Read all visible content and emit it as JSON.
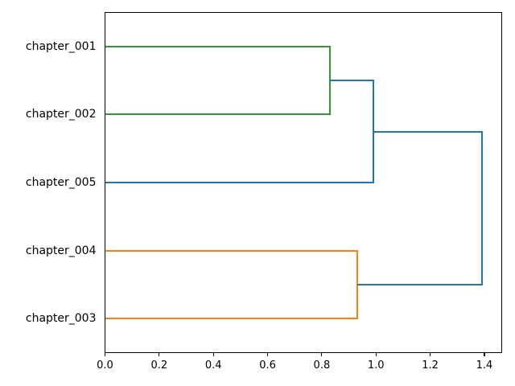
{
  "figure": {
    "background": "#ffffff",
    "plot_border_color": "#000000"
  },
  "chart_data": {
    "type": "dendrogram",
    "orientation": "right",
    "title": "",
    "xlabel": "",
    "ylabel": "",
    "leaves": [
      "chapter_001",
      "chapter_002",
      "chapter_005",
      "chapter_004",
      "chapter_003"
    ],
    "merges": [
      {
        "a": "chapter_001",
        "b": "chapter_002",
        "distance": 0.83,
        "color": "#2ca02c"
      },
      {
        "a": "chapter_004",
        "b": "chapter_003",
        "distance": 0.93,
        "color": "#ff7f0e"
      },
      {
        "a": "merge_0",
        "b": "chapter_005",
        "distance": 0.99,
        "color": "#1f77b4"
      },
      {
        "a": "merge_2",
        "b": "merge_1",
        "distance": 1.39,
        "color": "#1f77b4"
      }
    ],
    "x_ticks": [
      0.0,
      0.2,
      0.4,
      0.6,
      0.8,
      1.0,
      1.2,
      1.4
    ],
    "x_tick_labels": [
      "0.0",
      "0.2",
      "0.4",
      "0.6",
      "0.8",
      "1.0",
      "1.2",
      "1.4"
    ],
    "xlim": [
      0,
      1.467
    ],
    "grid": false,
    "legend": null,
    "colors": {
      "cluster_green": "#2ca02c",
      "cluster_orange": "#ff7f0e",
      "above_threshold_blue": "#1f77b4"
    }
  }
}
